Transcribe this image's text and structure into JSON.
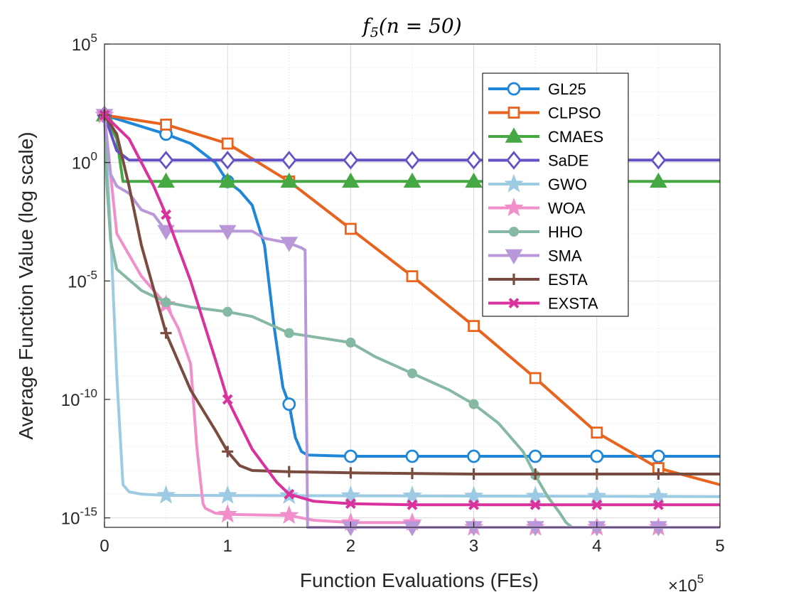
{
  "chart_data": {
    "type": "line",
    "title_main": "f",
    "title_sub": "5",
    "title_args": "(n = 50)",
    "xlabel": "Function Evaluations (FEs)",
    "ylabel": "Average Function Value (log scale)",
    "x_multiplier_base": "×10",
    "x_multiplier_exp": "5",
    "xlim": [
      0,
      5
    ],
    "ylim_log10": [
      -15.4,
      5
    ],
    "y_scale": "log",
    "x_ticks": [
      "0",
      "1",
      "2",
      "3",
      "4",
      "5"
    ],
    "y_tick_base": "10",
    "y_ticks_exp": [
      "5",
      "0",
      "-5",
      "-10",
      "-15"
    ],
    "grid": true,
    "legend_position": "top-right",
    "series": [
      {
        "name": "GL25",
        "color": "#1f86d8",
        "marker": "circle",
        "x": [
          0,
          0.5,
          0.7,
          0.9,
          1.0,
          1.1,
          1.2,
          1.3,
          1.38,
          1.45,
          1.5,
          1.55,
          1.6,
          1.65,
          2,
          2.5,
          3,
          3.5,
          4,
          4.5,
          5
        ],
        "y": [
          2.0,
          1.2,
          0.8,
          0.0,
          -0.8,
          -1.2,
          -1.8,
          -3.5,
          -7.0,
          -9.5,
          -10.2,
          -11.6,
          -12.2,
          -12.35,
          -12.4,
          -12.4,
          -12.4,
          -12.4,
          -12.4,
          -12.4,
          -12.4
        ]
      },
      {
        "name": "CLPSO",
        "color": "#e8631e",
        "marker": "square",
        "x": [
          0,
          0.5,
          1.0,
          1.5,
          2.0,
          2.5,
          3.0,
          3.5,
          4.0,
          4.5,
          5.0
        ],
        "y": [
          2.0,
          1.6,
          0.8,
          -0.8,
          -2.8,
          -4.8,
          -6.9,
          -9.1,
          -11.4,
          -12.9,
          -13.6
        ]
      },
      {
        "name": "CMAES",
        "color": "#45a843",
        "marker": "triangle",
        "x": [
          0,
          0.1,
          0.15,
          5.0
        ],
        "y": [
          2.0,
          1.0,
          -0.8,
          -0.8
        ]
      },
      {
        "name": "SaDE",
        "color": "#6650c8",
        "marker": "diamond",
        "x": [
          0,
          0.1,
          0.2,
          5.0
        ],
        "y": [
          2.0,
          0.5,
          0.1,
          0.1
        ]
      },
      {
        "name": "GWO",
        "color": "#9ecbe4",
        "marker": "star",
        "x": [
          0,
          0.05,
          0.1,
          0.15,
          0.2,
          0.3,
          0.5,
          5.0
        ],
        "y": [
          2.0,
          -3.0,
          -9.0,
          -13.6,
          -13.9,
          -14.0,
          -14.05,
          -14.1
        ]
      },
      {
        "name": "WOA",
        "color": "#f08fca",
        "marker": "star",
        "x": [
          0,
          0.1,
          0.3,
          0.5,
          0.6,
          0.7,
          0.75,
          0.8,
          0.82,
          0.9,
          1.0,
          1.5,
          1.7,
          2.0,
          2.5,
          2.52,
          3,
          5
        ],
        "y": [
          2.0,
          -3.0,
          -4.8,
          -6.0,
          -7.0,
          -8.5,
          -12.0,
          -14.4,
          -14.6,
          -14.8,
          -14.85,
          -14.9,
          -15.1,
          -15.2,
          -15.2,
          -15.4,
          -15.4,
          -15.4
        ]
      },
      {
        "name": "HHO",
        "color": "#86b9a3",
        "marker": "dot",
        "x": [
          0,
          0.02,
          0.05,
          0.1,
          0.3,
          0.5,
          0.7,
          1.0,
          1.2,
          1.5,
          2.0,
          2.2,
          2.5,
          2.8,
          3.0,
          3.2,
          3.4,
          3.5,
          3.6,
          3.7,
          3.75,
          3.8,
          5.0
        ],
        "y": [
          2.0,
          -1.0,
          -3.3,
          -4.5,
          -5.4,
          -5.9,
          -6.1,
          -6.3,
          -6.5,
          -7.2,
          -7.6,
          -8.2,
          -8.9,
          -9.6,
          -10.2,
          -11.0,
          -12.2,
          -13.2,
          -14.1,
          -14.8,
          -15.2,
          -15.4,
          -15.4
        ]
      },
      {
        "name": "SMA",
        "color": "#b898d8",
        "marker": "triangle-down",
        "x": [
          0,
          0.05,
          0.1,
          0.2,
          0.3,
          0.4,
          0.5,
          1.0,
          1.2,
          1.3,
          1.5,
          1.6,
          1.63,
          1.65,
          1.7,
          5.0
        ],
        "y": [
          2.0,
          -0.5,
          -1.0,
          -1.3,
          -2.0,
          -2.2,
          -2.9,
          -2.9,
          -2.9,
          -3.2,
          -3.4,
          -3.6,
          -3.7,
          -15.4,
          -15.4,
          -15.4
        ]
      },
      {
        "name": "ESTA",
        "color": "#7a4b3f",
        "marker": "plus",
        "x": [
          0,
          0.1,
          0.2,
          0.3,
          0.5,
          0.7,
          0.9,
          1.0,
          1.1,
          1.2,
          1.5,
          2.0,
          3.0,
          4.0,
          5.0
        ],
        "y": [
          2.0,
          1.2,
          -1.0,
          -3.5,
          -7.2,
          -9.6,
          -11.3,
          -12.2,
          -12.8,
          -13.0,
          -13.05,
          -13.1,
          -13.15,
          -13.15,
          -13.15
        ]
      },
      {
        "name": "EXSTA",
        "color": "#d9329d",
        "marker": "x",
        "x": [
          0,
          0.2,
          0.4,
          0.5,
          0.7,
          0.9,
          1.0,
          1.2,
          1.4,
          1.5,
          1.7,
          2.0,
          2.5,
          5.0
        ],
        "y": [
          2.0,
          1.0,
          -1.0,
          -2.2,
          -5.0,
          -8.3,
          -10.0,
          -12.1,
          -13.5,
          -14.0,
          -14.3,
          -14.4,
          -14.45,
          -14.45
        ]
      }
    ]
  }
}
